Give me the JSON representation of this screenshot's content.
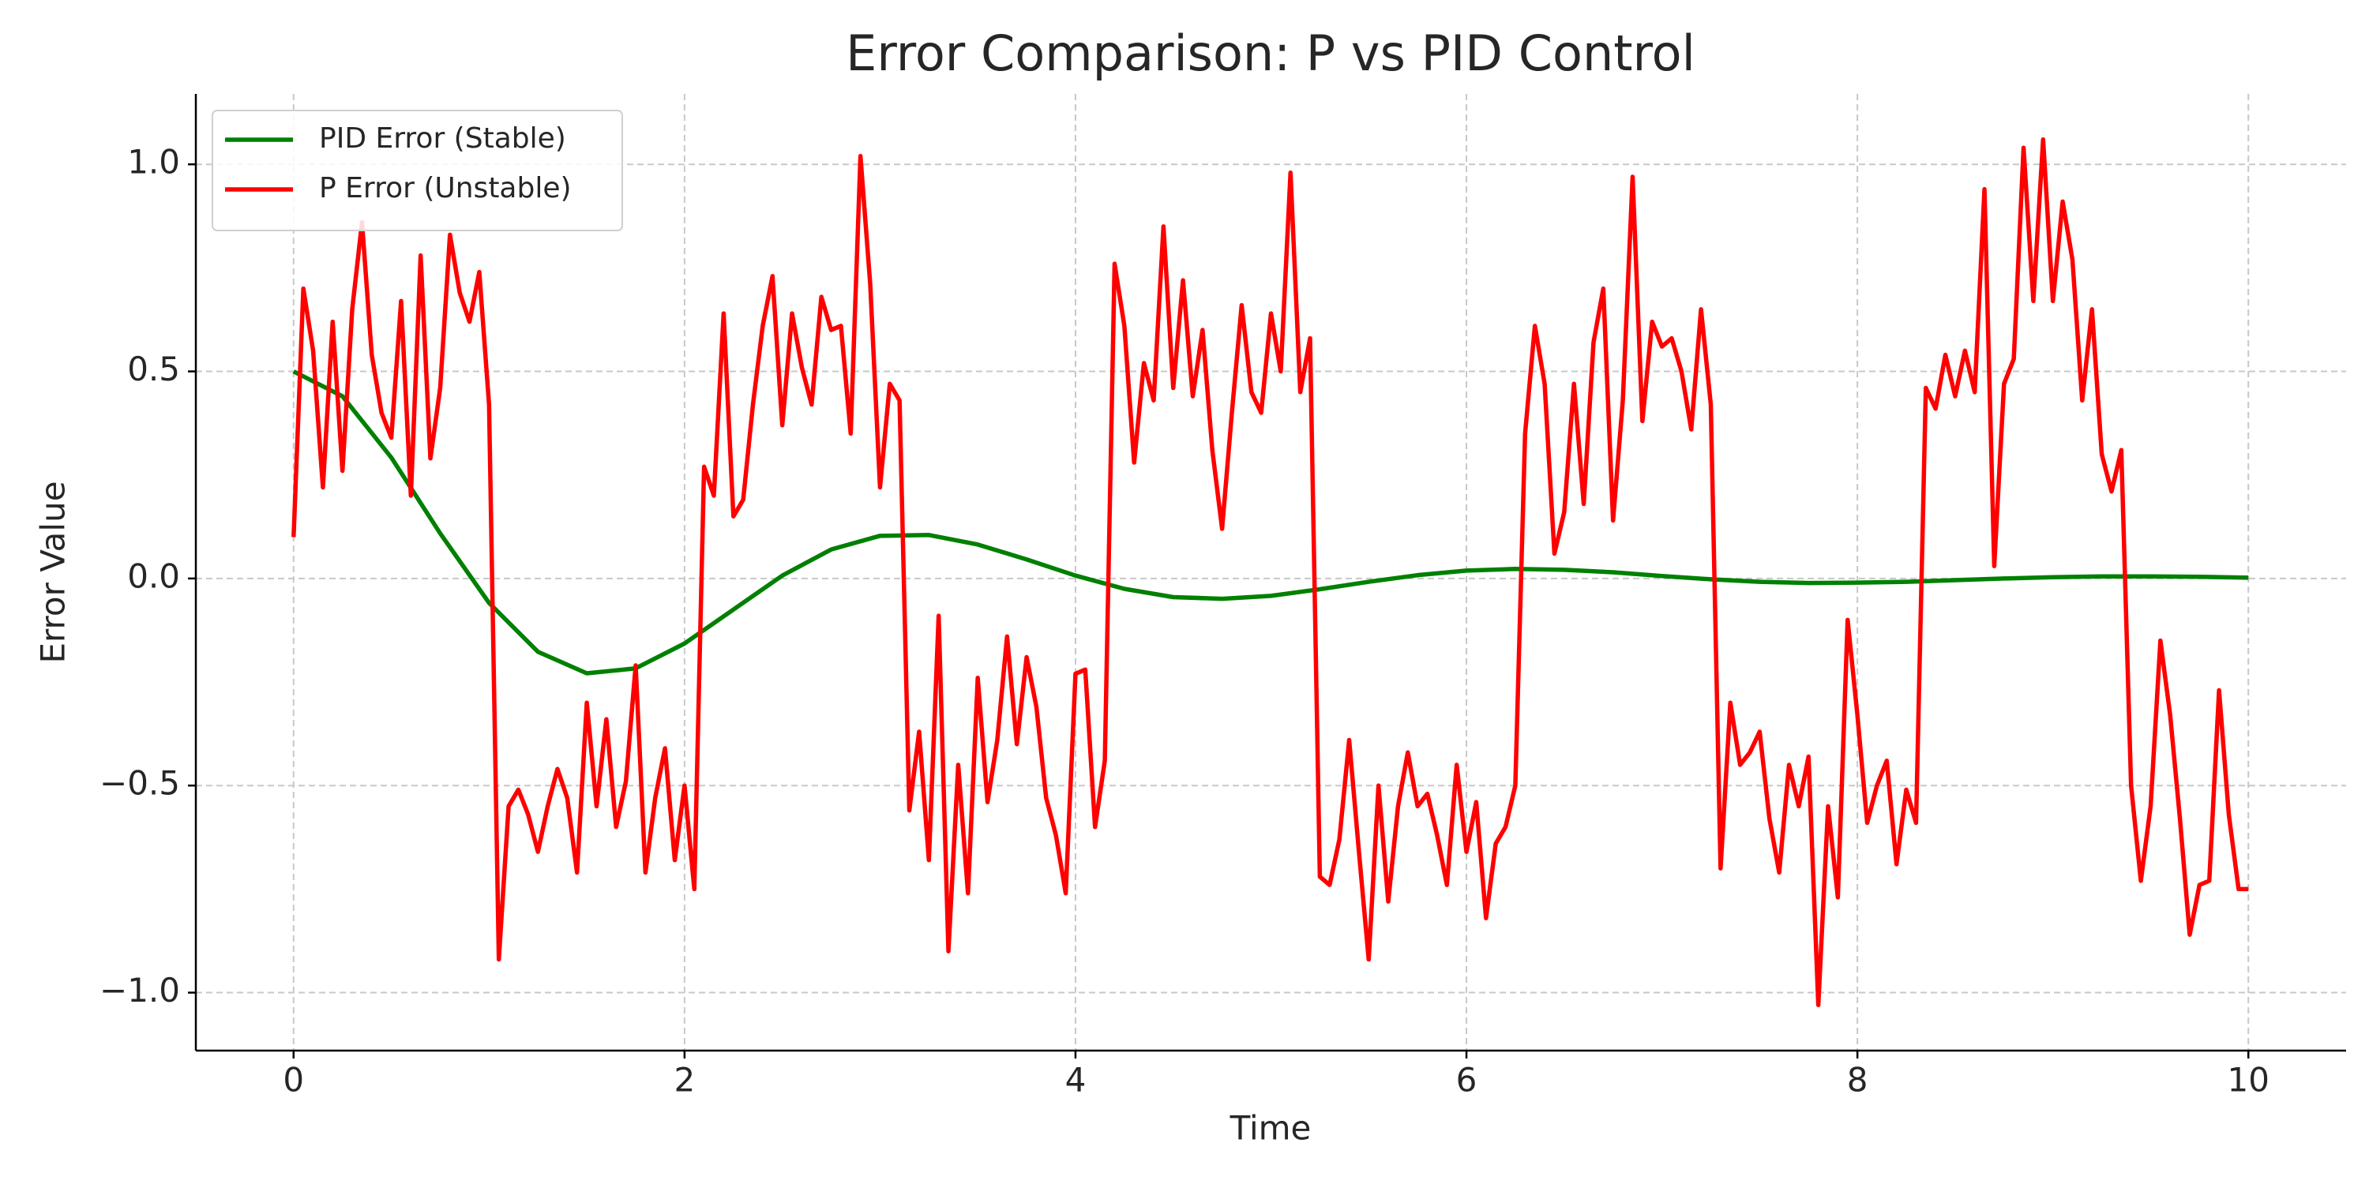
{
  "chart_data": {
    "type": "line",
    "title": "Error Comparison: P vs PID Control",
    "x_label": "Time",
    "y_label": "Error Value",
    "xlim": [
      -0.5,
      10.5
    ],
    "ylim": [
      -1.14,
      1.17
    ],
    "xticks": [
      0,
      2,
      4,
      6,
      8,
      10
    ],
    "yticks": [
      {
        "value": -1.0,
        "label": "−1.0"
      },
      {
        "value": -0.5,
        "label": "−0.5"
      },
      {
        "value": 0.0,
        "label": "0.0"
      },
      {
        "value": 0.5,
        "label": "0.5"
      },
      {
        "value": 1.0,
        "label": "1.0"
      }
    ],
    "grid": true,
    "legend": "upper left",
    "series": [
      {
        "name": "PID Error (Stable)",
        "color": "#008000",
        "x": [
          0,
          0.25,
          0.5,
          0.75,
          1.0,
          1.25,
          1.5,
          1.75,
          2.0,
          2.25,
          2.5,
          2.75,
          3.0,
          3.25,
          3.5,
          3.75,
          4.0,
          4.25,
          4.5,
          4.75,
          5.0,
          5.25,
          5.5,
          5.75,
          6.0,
          6.25,
          6.5,
          6.75,
          7.0,
          7.25,
          7.5,
          7.75,
          8.0,
          8.25,
          8.5,
          8.75,
          9.0,
          9.25,
          9.5,
          9.75,
          10.0
        ],
        "values": [
          0.5,
          0.44,
          0.292,
          0.109,
          -0.059,
          -0.177,
          -0.229,
          -0.217,
          -0.157,
          -0.075,
          0.007,
          0.07,
          0.103,
          0.105,
          0.082,
          0.046,
          0.007,
          -0.025,
          -0.045,
          -0.049,
          -0.042,
          -0.026,
          -0.008,
          0.008,
          0.019,
          0.023,
          0.021,
          0.015,
          0.006,
          -0.002,
          -0.008,
          -0.011,
          -0.01,
          -0.008,
          -0.004,
          0.0,
          0.003,
          0.005,
          0.005,
          0.004,
          0.002
        ]
      },
      {
        "name": "P Error (Unstable)",
        "color": "#ff0000",
        "x": [
          0,
          0.05,
          0.1,
          0.15,
          0.2,
          0.25,
          0.3,
          0.35,
          0.4,
          0.45,
          0.5,
          0.55,
          0.6,
          0.65,
          0.7,
          0.75,
          0.8,
          0.85,
          0.9,
          0.95,
          1.0,
          1.05,
          1.1,
          1.15,
          1.2,
          1.25,
          1.3,
          1.35,
          1.4,
          1.45,
          1.5,
          1.55,
          1.6,
          1.65,
          1.7,
          1.75,
          1.8,
          1.85,
          1.9,
          1.95,
          2.0,
          2.05,
          2.1,
          2.15,
          2.2,
          2.25,
          2.3,
          2.35,
          2.4,
          2.45,
          2.5,
          2.55,
          2.6,
          2.65,
          2.7,
          2.75,
          2.8,
          2.85,
          2.9,
          2.95,
          3.0,
          3.05,
          3.1,
          3.15,
          3.2,
          3.25,
          3.3,
          3.35,
          3.4,
          3.45,
          3.5,
          3.55,
          3.6,
          3.65,
          3.7,
          3.75,
          3.8,
          3.85,
          3.9,
          3.95,
          4.0,
          4.05,
          4.1,
          4.15,
          4.2,
          4.25,
          4.3,
          4.35,
          4.4,
          4.45,
          4.5,
          4.55,
          4.6,
          4.65,
          4.7,
          4.75,
          4.8,
          4.85,
          4.9,
          4.95,
          5.0,
          5.05,
          5.1,
          5.15,
          5.2,
          5.25,
          5.3,
          5.35,
          5.4,
          5.45,
          5.5,
          5.55,
          5.6,
          5.65,
          5.7,
          5.75,
          5.8,
          5.85,
          5.9,
          5.95,
          6.0,
          6.05,
          6.1,
          6.15,
          6.2,
          6.25,
          6.3,
          6.35,
          6.4,
          6.45,
          6.5,
          6.55,
          6.6,
          6.65,
          6.7,
          6.75,
          6.8,
          6.85,
          6.9,
          6.95,
          7.0,
          7.05,
          7.1,
          7.15,
          7.2,
          7.25,
          7.3,
          7.35,
          7.4,
          7.45,
          7.5,
          7.55,
          7.6,
          7.65,
          7.7,
          7.75,
          7.8,
          7.85,
          7.9,
          7.95,
          8.0,
          8.05,
          8.1,
          8.15,
          8.2,
          8.25,
          8.3,
          8.35,
          8.4,
          8.45,
          8.5,
          8.55,
          8.6,
          8.65,
          8.7,
          8.75,
          8.8,
          8.85,
          8.9,
          8.95,
          9.0,
          9.05,
          9.1,
          9.15,
          9.2,
          9.25,
          9.3,
          9.35,
          9.4,
          9.45,
          9.5,
          9.55,
          9.6,
          9.65,
          9.7,
          9.75,
          9.8,
          9.85,
          9.9,
          9.95,
          10.0
        ],
        "values": [
          0.1,
          0.7,
          0.55,
          0.22,
          0.62,
          0.26,
          0.65,
          0.86,
          0.54,
          0.4,
          0.34,
          0.67,
          0.2,
          0.78,
          0.29,
          0.46,
          0.83,
          0.69,
          0.62,
          0.74,
          0.42,
          -0.92,
          -0.55,
          -0.51,
          -0.57,
          -0.66,
          -0.55,
          -0.46,
          -0.53,
          -0.71,
          -0.3,
          -0.55,
          -0.34,
          -0.6,
          -0.49,
          -0.21,
          -0.71,
          -0.53,
          -0.41,
          -0.68,
          -0.5,
          -0.75,
          0.27,
          0.2,
          0.64,
          0.15,
          0.19,
          0.42,
          0.61,
          0.73,
          0.37,
          0.64,
          0.51,
          0.42,
          0.68,
          0.6,
          0.61,
          0.35,
          1.02,
          0.71,
          0.22,
          0.47,
          0.43,
          -0.56,
          -0.37,
          -0.68,
          -0.09,
          -0.9,
          -0.45,
          -0.76,
          -0.24,
          -0.54,
          -0.39,
          -0.14,
          -0.4,
          -0.19,
          -0.31,
          -0.53,
          -0.62,
          -0.76,
          -0.23,
          -0.22,
          -0.6,
          -0.44,
          0.76,
          0.61,
          0.28,
          0.52,
          0.43,
          0.85,
          0.46,
          0.72,
          0.44,
          0.6,
          0.31,
          0.12,
          0.4,
          0.66,
          0.45,
          0.4,
          0.64,
          0.5,
          0.98,
          0.45,
          0.58,
          -0.72,
          -0.74,
          -0.63,
          -0.39,
          -0.66,
          -0.92,
          -0.5,
          -0.78,
          -0.55,
          -0.42,
          -0.55,
          -0.52,
          -0.62,
          -0.74,
          -0.45,
          -0.66,
          -0.54,
          -0.82,
          -0.64,
          -0.6,
          -0.5,
          0.35,
          0.61,
          0.47,
          0.06,
          0.16,
          0.47,
          0.18,
          0.57,
          0.7,
          0.14,
          0.43,
          0.97,
          0.38,
          0.62,
          0.56,
          0.58,
          0.5,
          0.36,
          0.65,
          0.42,
          -0.7,
          -0.3,
          -0.45,
          -0.42,
          -0.37,
          -0.58,
          -0.71,
          -0.45,
          -0.55,
          -0.43,
          -1.03,
          -0.55,
          -0.77,
          -0.1,
          -0.33,
          -0.59,
          -0.5,
          -0.44,
          -0.69,
          -0.51,
          -0.59,
          0.46,
          0.41,
          0.54,
          0.44,
          0.55,
          0.45,
          0.94,
          0.03,
          0.47,
          0.53,
          1.04,
          0.67,
          1.06,
          0.67,
          0.91,
          0.77,
          0.43,
          0.65,
          0.3,
          0.21,
          0.31,
          -0.5,
          -0.73,
          -0.55,
          -0.15,
          -0.33,
          -0.58,
          -0.86,
          -0.74,
          -0.73,
          -0.27,
          -0.57,
          -0.75,
          -0.75
        ]
      }
    ]
  }
}
